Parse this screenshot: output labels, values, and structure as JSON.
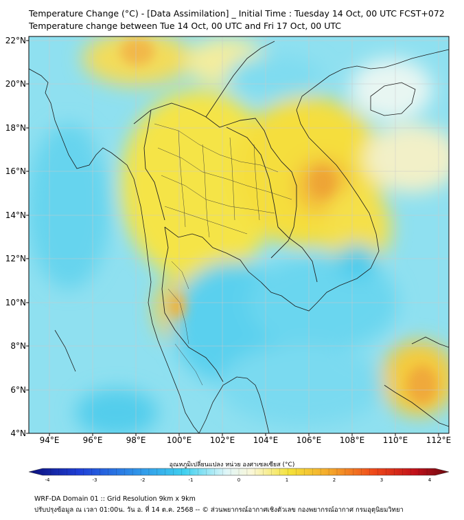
{
  "title_line1": "Temperature Change (°C) - [Data Assimilation] _ Initial Time : Tuesday 14 Oct, 00 UTC FCST+072",
  "title_line2": "Temperature change between Tue 14 Oct, 00 UTC and Fri 17 Oct, 00 UTC",
  "map": {
    "lat_labels": [
      "22°N",
      "20°N",
      "18°N",
      "16°N",
      "14°N",
      "12°N",
      "10°N",
      "8°N",
      "6°N",
      "4°N"
    ],
    "lon_labels": [
      "94°E",
      "96°E",
      "98°E",
      "100°E",
      "102°E",
      "104°E",
      "106°E",
      "108°E",
      "110°E",
      "112°E"
    ],
    "lat_range": [
      4,
      22.2
    ],
    "lon_range": [
      93,
      112.5
    ],
    "colors": {
      "warm": "#f5e13a",
      "warm_strong": "#f4a62a",
      "neutral": "#f4f8f4",
      "cool": "#6fd8ef",
      "cool_strong": "#36c6ea",
      "coast": "#1a1a1a"
    }
  },
  "colorbar": {
    "title": "อุณหภูมิเปลี่ยนแปลง หน่วย องศาเซลเซียส (°C)",
    "ticks": [
      "-4",
      "-3",
      "-2",
      "-1",
      "0",
      "1",
      "2",
      "3",
      "4"
    ],
    "min": -4,
    "max": 4
  },
  "footer_line1": "WRF-DA Domain 01 :: Grid Resolution 9km x 9km",
  "footer_line2": "ปรับปรุงข้อมูล ณ เวลา 01:00น. วัน อ. ที่ 14 ต.ค. 2568 -- © ส่วนพยากรณ์อากาศเชิงตัวเลข กองพยากรณ์อากาศ กรมอุตุนิยมวิทยา"
}
